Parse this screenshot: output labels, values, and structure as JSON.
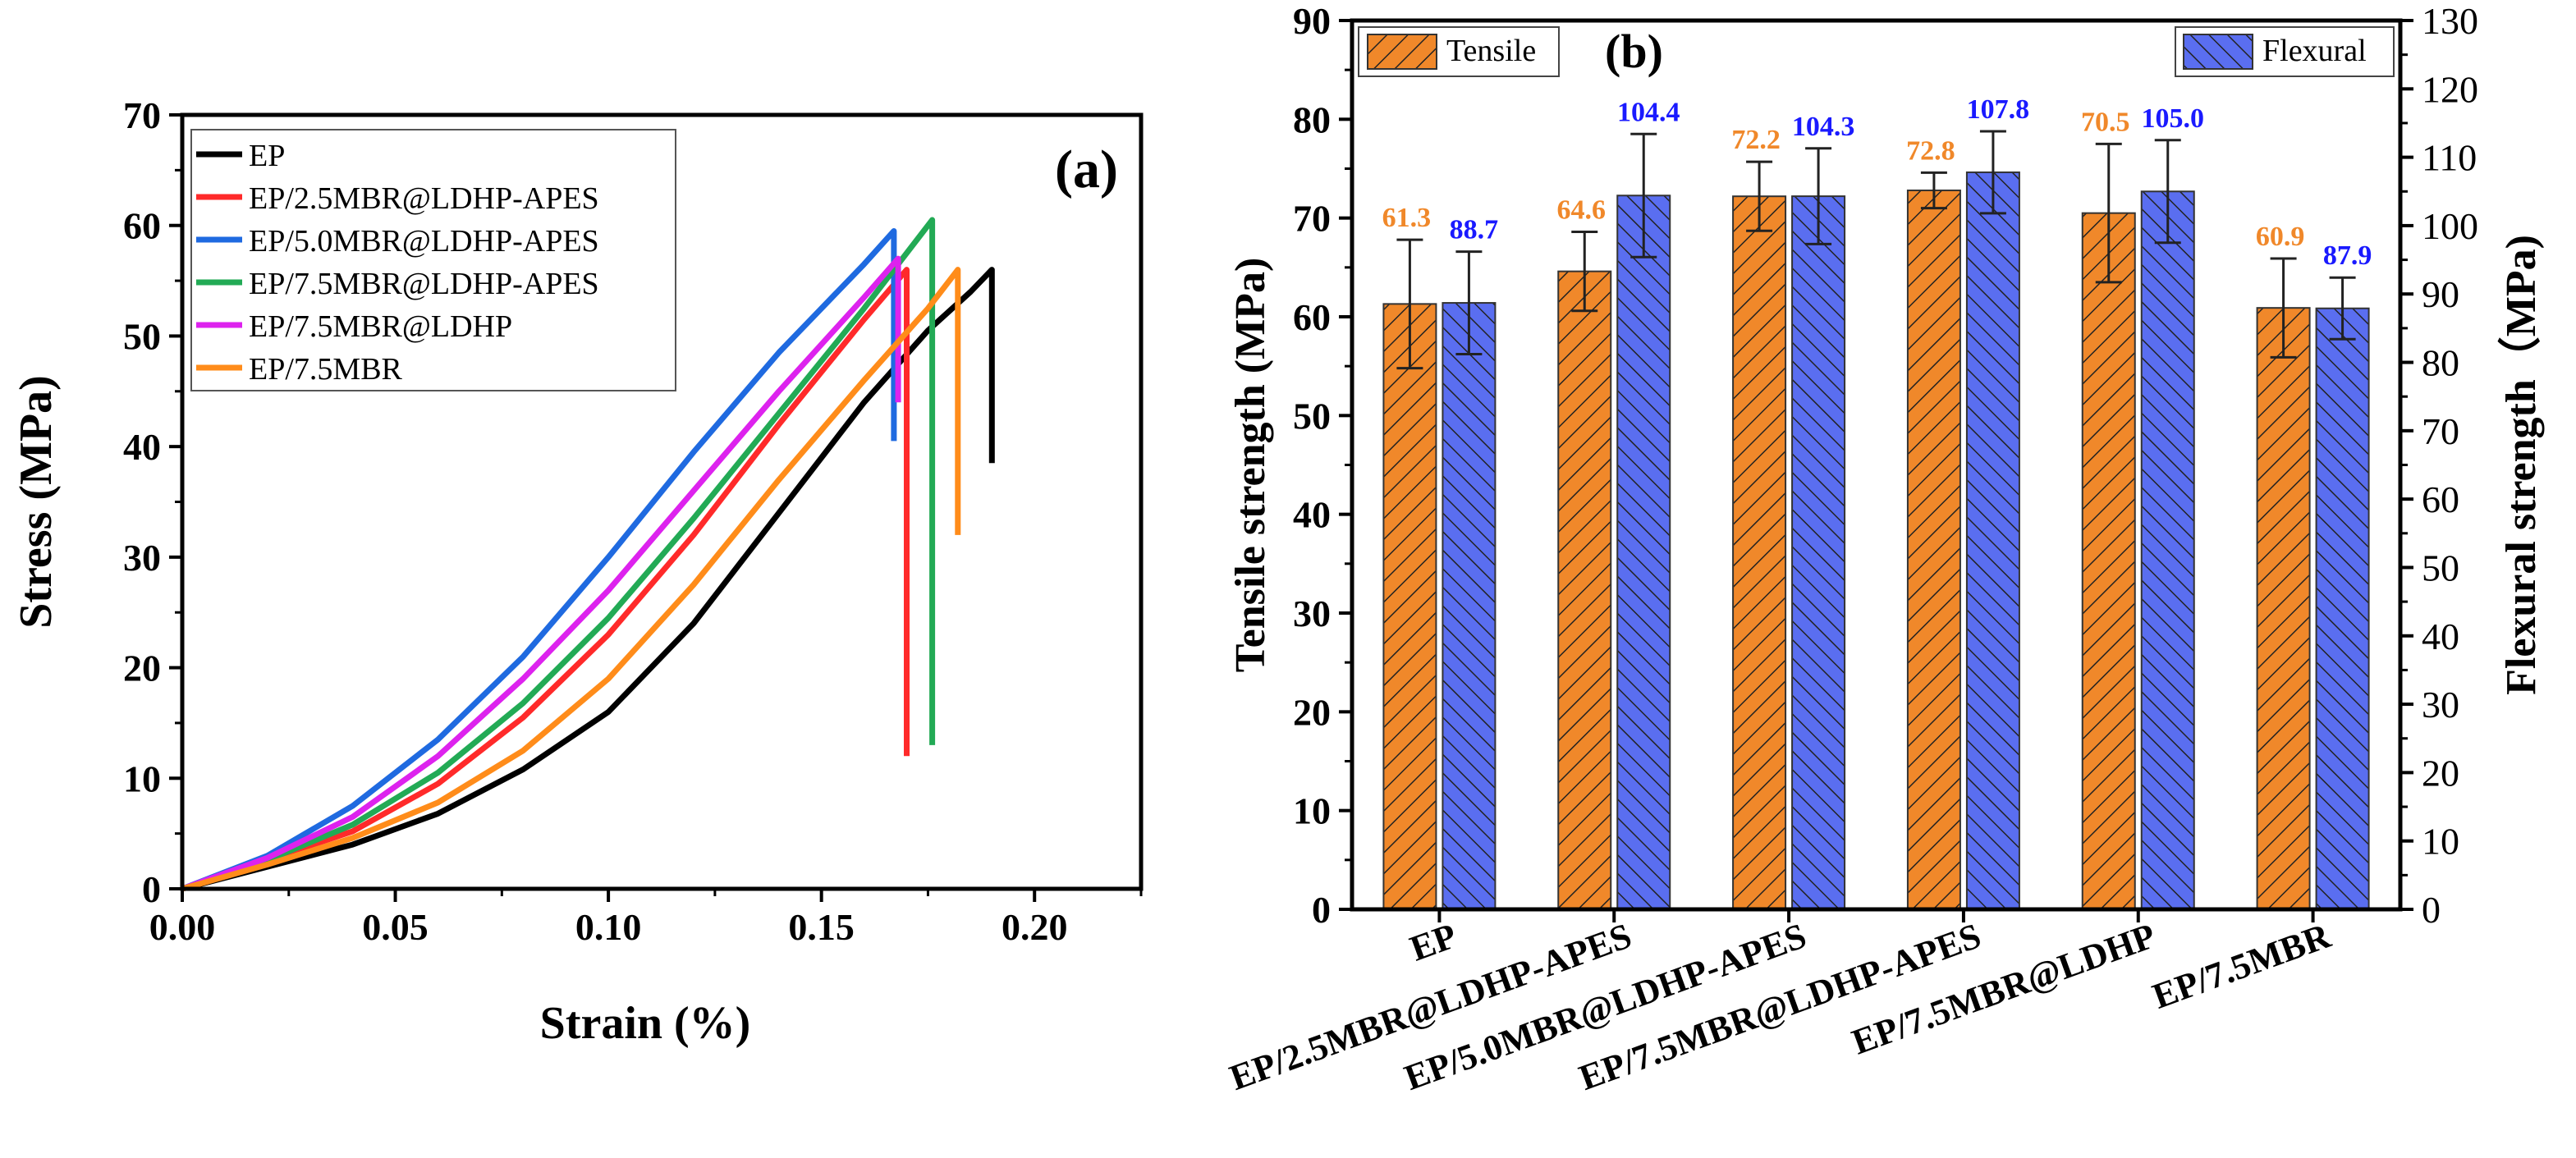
{
  "chart_data": [
    {
      "type": "line",
      "panel_label": "(a)",
      "xlabel": "Strain (%)",
      "ylabel": "Stress (MPa)",
      "xlim": [
        0,
        0.225
      ],
      "ylim": [
        0,
        70
      ],
      "x_ticks": [
        0.0,
        0.05,
        0.1,
        0.15,
        0.2
      ],
      "x_tick_labels": [
        "0.00",
        "0.05",
        "0.10",
        "0.15",
        "0.20"
      ],
      "y_ticks": [
        0,
        10,
        20,
        30,
        40,
        50,
        60,
        70
      ],
      "y_tick_labels": [
        "0",
        "10",
        "20",
        "30",
        "40",
        "50",
        "60",
        "70"
      ],
      "legend_position": "top-left",
      "series": [
        {
          "name": "EP",
          "color": "#000000",
          "points": [
            [
              0,
              0
            ],
            [
              0.02,
              2
            ],
            [
              0.04,
              4
            ],
            [
              0.06,
              6.8
            ],
            [
              0.08,
              10.8
            ],
            [
              0.1,
              16
            ],
            [
              0.12,
              24
            ],
            [
              0.14,
              34
            ],
            [
              0.16,
              44
            ],
            [
              0.175,
              50.5
            ],
            [
              0.185,
              54
            ],
            [
              0.19,
              56
            ]
          ],
          "drop_to": 38.5
        },
        {
          "name": "EP/2.5MBR@LDHP-APES",
          "color": "#ff2a2a",
          "points": [
            [
              0,
              0
            ],
            [
              0.02,
              2.6
            ],
            [
              0.04,
              5.2
            ],
            [
              0.06,
              9.5
            ],
            [
              0.08,
              15.5
            ],
            [
              0.1,
              23
            ],
            [
              0.12,
              32
            ],
            [
              0.14,
              42
            ],
            [
              0.16,
              51.5
            ],
            [
              0.17,
              56
            ]
          ],
          "drop_to": 12
        },
        {
          "name": "EP/5.0MBR@LDHP-APES",
          "color": "#1f6ae0",
          "points": [
            [
              0,
              0
            ],
            [
              0.02,
              3
            ],
            [
              0.04,
              7.5
            ],
            [
              0.06,
              13.5
            ],
            [
              0.08,
              21
            ],
            [
              0.1,
              30
            ],
            [
              0.12,
              39.5
            ],
            [
              0.14,
              48.5
            ],
            [
              0.16,
              56.5
            ],
            [
              0.167,
              59.5
            ]
          ],
          "drop_to": 40.5
        },
        {
          "name": "EP/7.5MBR@LDHP-APES",
          "color": "#22aa55",
          "points": [
            [
              0,
              0
            ],
            [
              0.02,
              2.6
            ],
            [
              0.04,
              5.8
            ],
            [
              0.06,
              10.5
            ],
            [
              0.08,
              16.8
            ],
            [
              0.1,
              24.5
            ],
            [
              0.12,
              33.5
            ],
            [
              0.14,
              43
            ],
            [
              0.16,
              52.5
            ],
            [
              0.176,
              60.5
            ]
          ],
          "drop_to": 13
        },
        {
          "name": "EP/7.5MBR@LDHP",
          "color": "#dd22ee",
          "points": [
            [
              0,
              0
            ],
            [
              0.02,
              2.8
            ],
            [
              0.04,
              6.5
            ],
            [
              0.06,
              12
            ],
            [
              0.08,
              19
            ],
            [
              0.1,
              27
            ],
            [
              0.12,
              36
            ],
            [
              0.14,
              45
            ],
            [
              0.16,
              53.5
            ],
            [
              0.168,
              57
            ]
          ],
          "drop_to": 44
        },
        {
          "name": "EP/7.5MBR",
          "color": "#ff8c1a",
          "points": [
            [
              0,
              0
            ],
            [
              0.02,
              2.2
            ],
            [
              0.04,
              4.6
            ],
            [
              0.06,
              7.8
            ],
            [
              0.08,
              12.5
            ],
            [
              0.1,
              19
            ],
            [
              0.12,
              27.5
            ],
            [
              0.14,
              37
            ],
            [
              0.16,
              46
            ],
            [
              0.175,
              52.5
            ],
            [
              0.182,
              56
            ]
          ],
          "drop_to": 32
        }
      ]
    },
    {
      "type": "bar",
      "panel_label": "(b)",
      "categories": [
        "EP",
        "EP/2.5MBR@LDHP-APES",
        "EP/5.0MBR@LDHP-APES",
        "EP/7.5MBR@LDHP-APES",
        "EP/7.5MBR@LDHP",
        "EP/7.5MBR"
      ],
      "ylabel_left": "Tensile strength (MPa)",
      "ylabel_right": "Flexural strength（MPa)",
      "ylim_left": [
        0,
        90
      ],
      "ylim_right": [
        0,
        130
      ],
      "y_ticks_left": [
        0,
        10,
        20,
        30,
        40,
        50,
        60,
        70,
        80,
        90
      ],
      "y_tick_labels_left": [
        "0",
        "10",
        "20",
        "30",
        "40",
        "50",
        "60",
        "70",
        "80",
        "90"
      ],
      "y_ticks_right": [
        0,
        10,
        20,
        30,
        40,
        50,
        60,
        70,
        80,
        90,
        100,
        110,
        120,
        130
      ],
      "y_tick_labels_right": [
        "0",
        "10",
        "20",
        "30",
        "40",
        "50",
        "60",
        "70",
        "80",
        "90",
        "100",
        "110",
        "120",
        "130"
      ],
      "series": [
        {
          "name": "Tensile",
          "axis": "left",
          "color": "#f0882a",
          "label_color": "#f0882a",
          "values": [
            61.3,
            64.6,
            72.2,
            72.8,
            70.5,
            60.9
          ],
          "labels": [
            "61.3",
            "64.6",
            "72.2",
            "72.8",
            "70.5",
            "60.9"
          ],
          "errors": [
            6.5,
            4.0,
            3.5,
            1.8,
            7.0,
            5.0
          ]
        },
        {
          "name": "Flexural",
          "axis": "right",
          "color": "#5a6ef0",
          "label_color": "#1a1aff",
          "values": [
            88.7,
            104.4,
            104.3,
            107.8,
            105.0,
            87.9
          ],
          "labels": [
            "88.7",
            "104.4",
            "104.3",
            "107.8",
            "105.0",
            "87.9"
          ],
          "errors": [
            7.5,
            9.0,
            7.0,
            6.0,
            7.5,
            4.5
          ]
        }
      ]
    }
  ]
}
